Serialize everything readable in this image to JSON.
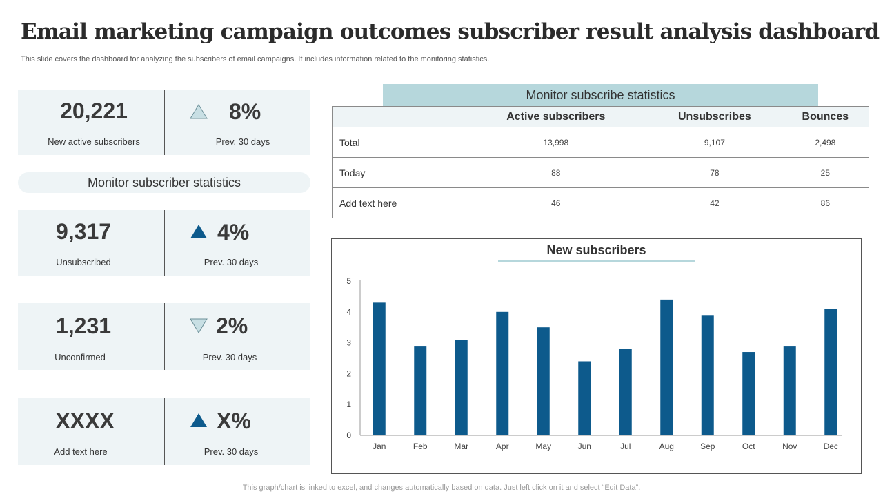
{
  "header": {
    "title": "Email marketing campaign outcomes subscriber result analysis dashboard",
    "subtitle": "This slide covers the dashboard for analyzing the subscribers of email campaigns. It includes information related to the monitoring statistics."
  },
  "kpis": [
    {
      "value": "20,221",
      "label": "New active subscribers",
      "pct": "8%",
      "trend": "up-outline",
      "period": "Prev.  30 days"
    },
    {
      "value": "9,317",
      "label": "Unsubscribed",
      "pct": "4%",
      "trend": "up-filled",
      "period": "Prev.  30 days"
    },
    {
      "value": "1,231",
      "label": "Unconfirmed",
      "pct": "2%",
      "trend": "down-outline",
      "period": "Prev.  30 days"
    },
    {
      "value": "XXXX",
      "label": "Add text here",
      "pct": "X%",
      "trend": "up-filled",
      "period": "Prev.  30 days"
    }
  ],
  "monitor_pill": "Monitor subscriber statistics",
  "stats_table": {
    "title": "Monitor subscribe statistics",
    "columns": [
      "",
      "Active subscribers",
      "Unsubscribes",
      "Bounces"
    ],
    "rows": [
      {
        "label": "Total",
        "cells": [
          "13,998",
          "9,107",
          "2,498"
        ]
      },
      {
        "label": "Today",
        "cells": [
          "88",
          "78",
          "25"
        ]
      },
      {
        "label": "Add text here",
        "cells": [
          "46",
          "42",
          "86"
        ]
      }
    ]
  },
  "chart_data": {
    "type": "bar",
    "title": "New subscribers",
    "categories": [
      "Jan",
      "Feb",
      "Mar",
      "Apr",
      "May",
      "Jun",
      "Jul",
      "Aug",
      "Sep",
      "Oct",
      "Nov",
      "Dec"
    ],
    "values": [
      4.3,
      2.9,
      3.1,
      4.0,
      3.5,
      2.4,
      2.8,
      4.4,
      3.9,
      2.7,
      2.9,
      4.1
    ],
    "ylim": [
      0,
      5
    ],
    "yticks": [
      0,
      1,
      2,
      3,
      4,
      5
    ],
    "xlabel": "",
    "ylabel": "",
    "grid": false,
    "bar_color": "#0d5a8c"
  },
  "colors": {
    "accent": "#0d5a8c",
    "card_bg": "#eef4f6",
    "band": "#b6d7dc",
    "tri_outline_fill": "#c8dfe4"
  },
  "footnote": "This graph/chart is linked to excel, and changes automatically based on data. Just left click on it and select “Edit Data”."
}
